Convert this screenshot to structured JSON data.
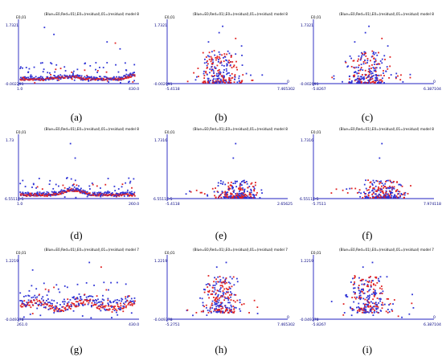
{
  "colors": {
    "blue": "#2e33d6",
    "red": "#e02020",
    "axis": "#2020c0"
  },
  "captions": [
    "(a)",
    "(b)",
    "(c)",
    "(d)",
    "(e)",
    "(f)",
    "(g)",
    "(h)",
    "(i)"
  ],
  "chart_data": [
    {
      "type": "scatter",
      "title": "(Blue=E0,Red=01),E0=(residual),01=(residual) model 8",
      "ylabel": "E0,01",
      "ytick_top": "1.7321",
      "ytick_bottom": "-0.002291",
      "x_min_label": "1.0",
      "x_max_label": "430.0",
      "x_range": [
        1,
        430
      ],
      "y_range": [
        -0.0023,
        1.7321
      ],
      "zero_label": ""
    },
    {
      "type": "scatter",
      "title": "(Blue=E0,Red=01),E0=(residual),01=(residual) model 8",
      "ylabel": "E0,01",
      "ytick_top": "1.7321",
      "ytick_bottom": "-0.002991",
      "x_min_label": "-5.4118",
      "x_max_label": "7.465302",
      "x_range": [
        -5.4118,
        7.465302
      ],
      "y_range": [
        -0.003,
        1.7321
      ],
      "zero_label": "0"
    },
    {
      "type": "scatter",
      "title": "(Blue=E0,Red=01),E0=(residual),01=(residual) model 8",
      "ylabel": "E0,01",
      "ytick_top": "1.7321",
      "ytick_bottom": "-0.002991",
      "x_min_label": "-5.8267",
      "x_max_label": "6.387104",
      "x_range": [
        -5.8267,
        6.387104
      ],
      "y_range": [
        -0.003,
        1.7321
      ],
      "zero_label": "0"
    },
    {
      "type": "scatter",
      "title": "(Blue=E0,Red=01),E0=(residual),01=(residual) model 8",
      "ylabel": "E0,01",
      "ytick_top": "1.73",
      "ytick_bottom": "6.5511E-5",
      "x_min_label": "1.0",
      "x_max_label": "260.0",
      "x_range": [
        1,
        260
      ],
      "y_range": [
        0,
        1.73
      ],
      "zero_label": ""
    },
    {
      "type": "scatter",
      "title": "(Blue=E0,Red=01),E0=(residual),01=(residual) model 8",
      "ylabel": "E0,01",
      "ytick_top": "1.7316",
      "ytick_bottom": "6.5511E-5",
      "x_min_label": "-5.4118",
      "x_max_label": "2.65625",
      "x_range": [
        -5.4118,
        2.65625
      ],
      "y_range": [
        0,
        1.7316
      ],
      "zero_label": ""
    },
    {
      "type": "scatter",
      "title": "(Blue=E0,Red=01),E0=(residual),01=(residual) model 8",
      "ylabel": "E0,01",
      "ytick_top": "1.7316",
      "ytick_bottom": "6.5511E-5",
      "x_min_label": "-5.7511",
      "x_max_label": "7.974118",
      "x_range": [
        -5.7511,
        7.974118
      ],
      "y_range": [
        0,
        1.7316
      ],
      "zero_label": ""
    },
    {
      "type": "scatter",
      "title": "(Blue=E0,Red=01),E0=(residual),01=(residual) model 7",
      "ylabel": "E0,01",
      "ytick_top": "1.2219",
      "ytick_bottom": "-0.049378",
      "x_min_label": "261.0",
      "x_max_label": "430.0",
      "x_range": [
        261,
        430
      ],
      "y_range": [
        -0.0494,
        1.2219
      ],
      "zero_label": ""
    },
    {
      "type": "scatter",
      "title": "(Blue=E0,Red=01),E0=(residual),01=(residual) model 7",
      "ylabel": "E0,01",
      "ytick_top": "1.2219",
      "ytick_bottom": "-0.049378",
      "x_min_label": "-5.2751",
      "x_max_label": "7.465302",
      "x_range": [
        -5.2751,
        7.465302
      ],
      "y_range": [
        -0.0494,
        1.2219
      ],
      "zero_label": "0"
    },
    {
      "type": "scatter",
      "title": "(Blue=E0,Red=01),E0=(residual),01=(residual) model 7",
      "ylabel": "E0,01",
      "ytick_top": "1.2219",
      "ytick_bottom": "-0.049378",
      "x_min_label": "-5.8267",
      "x_max_label": "6.387104",
      "x_range": [
        -5.8267,
        6.387104
      ],
      "y_range": [
        -0.0494,
        1.2219
      ],
      "zero_label": "0"
    }
  ]
}
